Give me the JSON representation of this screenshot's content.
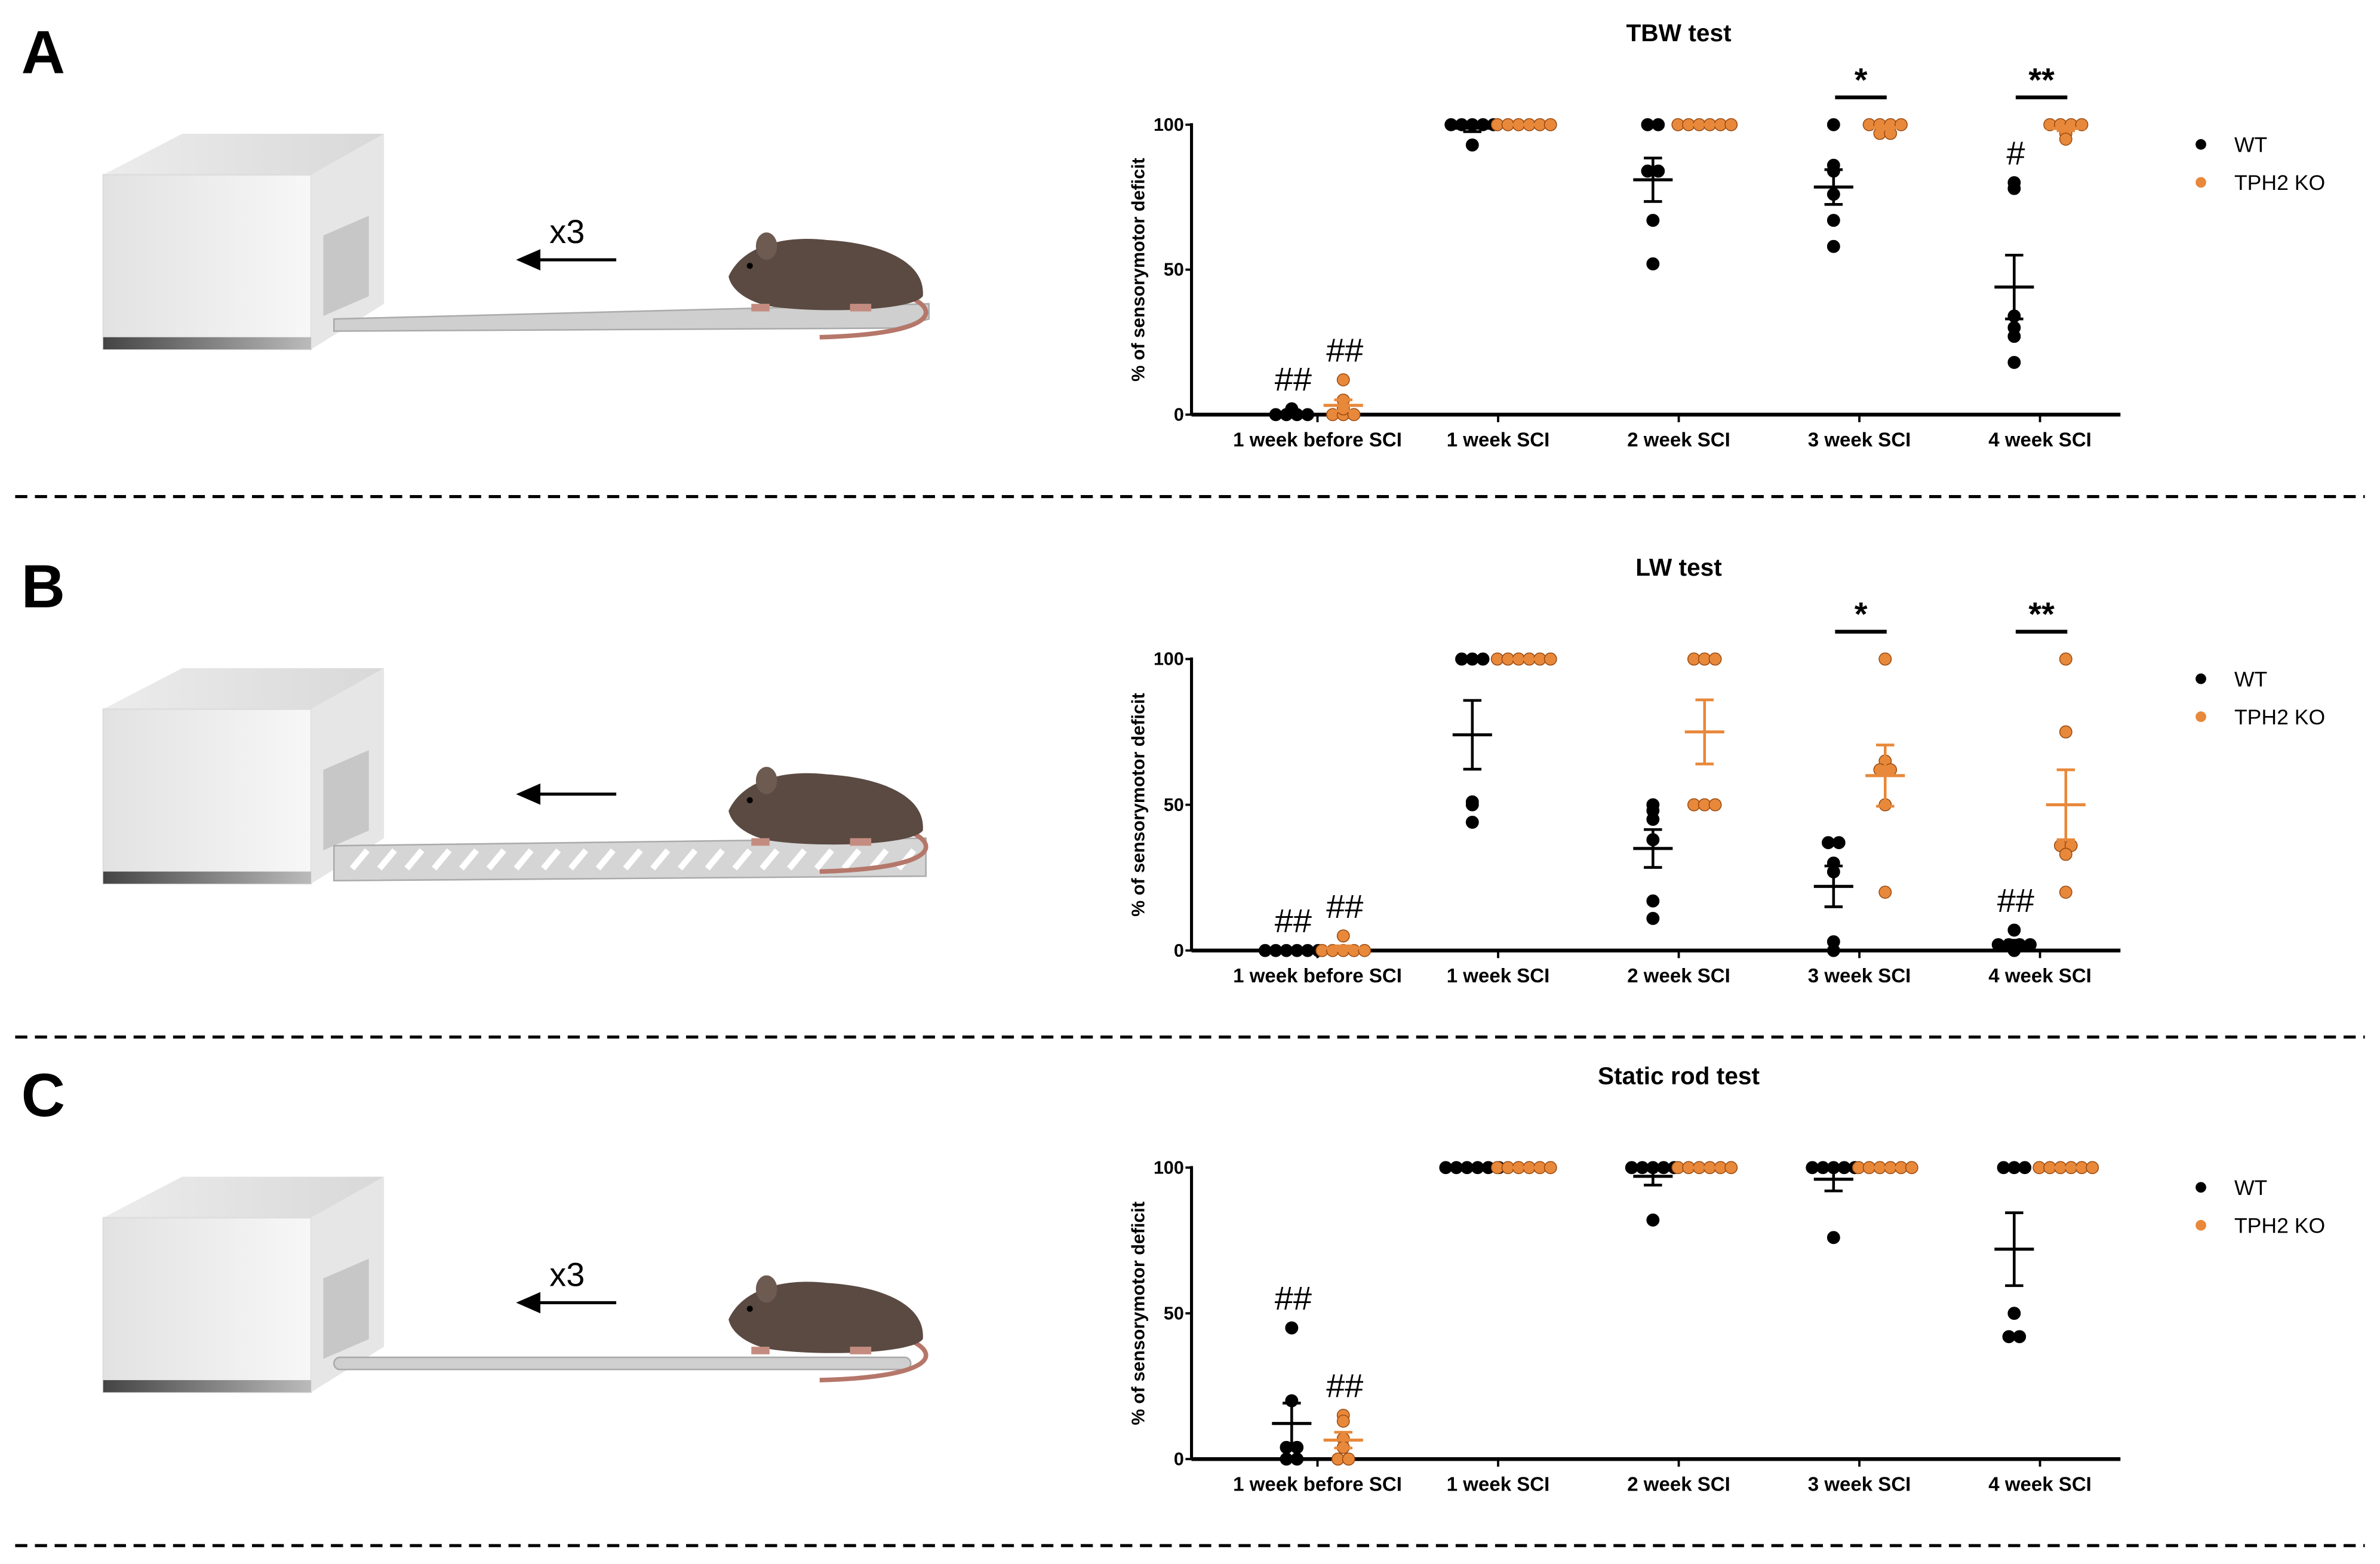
{
  "panels": [
    {
      "letter": "A",
      "arrow_label": "x3",
      "beam": "tapered"
    },
    {
      "letter": "B",
      "arrow_label": "",
      "beam": "ladder"
    },
    {
      "letter": "C",
      "arrow_label": "x3",
      "beam": "rod"
    }
  ],
  "colors": {
    "wt": "#000000",
    "ko": "#e8883a",
    "ko_stroke": "#9a4a10"
  },
  "chart_data": [
    {
      "type": "scatter",
      "title": "TBW test",
      "ylabel": "% of sensorymotor deficit",
      "ylim": [
        0,
        100
      ],
      "yticks": [
        "0",
        "50",
        "100"
      ],
      "categories": [
        "1 week before SCI",
        "1 week SCI",
        "2 week SCI",
        "3 week SCI",
        "4 week SCI"
      ],
      "legend": {
        "position": "right",
        "entries": [
          "WT",
          "TPH2 KO"
        ]
      },
      "series": [
        {
          "name": "WT",
          "points": [
            [
              0,
              0,
              0,
              0,
              1,
              2
            ],
            [
              100,
              100,
              100,
              100,
              100,
              93
            ],
            [
              100,
              100,
              84,
              84,
              67,
              52
            ],
            [
              100,
              86,
              84,
              76,
              67,
              58
            ],
            [
              80,
              78,
              34,
              30,
              27,
              18
            ]
          ],
          "mean": [
            0.5,
            98.8,
            81,
            78.5,
            44
          ],
          "sem": [
            0.4,
            1.2,
            7.5,
            6,
            11
          ]
        },
        {
          "name": "TPH2 KO",
          "points": [
            [
              0,
              0,
              0,
              2,
              5,
              12
            ],
            [
              100,
              100,
              100,
              100,
              100,
              100
            ],
            [
              100,
              100,
              100,
              100,
              100,
              100
            ],
            [
              100,
              100,
              100,
              100,
              97,
              97
            ],
            [
              100,
              100,
              100,
              100,
              97,
              95
            ]
          ],
          "mean": [
            3.2,
            100,
            100,
            99,
            98.7
          ],
          "sem": [
            1.9,
            0,
            0,
            0.6,
            0.8
          ]
        }
      ],
      "annotations": [
        {
          "group": 0,
          "series": 0,
          "text": "##"
        },
        {
          "group": 0,
          "series": 1,
          "text": "##"
        },
        {
          "group": 4,
          "series": 0,
          "text": "#"
        }
      ],
      "significance": [
        {
          "group": 3,
          "text": "*"
        },
        {
          "group": 4,
          "text": "**"
        }
      ]
    },
    {
      "type": "scatter",
      "title": "LW test",
      "ylabel": "% of sensorymotor deficit",
      "ylim": [
        0,
        100
      ],
      "yticks": [
        "0",
        "50",
        "100"
      ],
      "categories": [
        "1 week before SCI",
        "1 week SCI",
        "2 week SCI",
        "3 week SCI",
        "4 week SCI"
      ],
      "legend": {
        "position": "right",
        "entries": [
          "WT",
          "TPH2 KO"
        ]
      },
      "series": [
        {
          "name": "WT",
          "points": [
            [
              0,
              0,
              0,
              0,
              0,
              0
            ],
            [
              100,
              100,
              100,
              51,
              50,
              44
            ],
            [
              48,
              50,
              45,
              38,
              17,
              11
            ],
            [
              37,
              37,
              30,
              27,
              3,
              0
            ],
            [
              7,
              2,
              2,
              2,
              2,
              0
            ]
          ],
          "mean": [
            0,
            74,
            35,
            22,
            2.5
          ],
          "sem": [
            0,
            11.8,
            6.5,
            7,
            1
          ]
        },
        {
          "name": "TPH2 KO",
          "points": [
            [
              0,
              0,
              0,
              0,
              0,
              5
            ],
            [
              100,
              100,
              100,
              100,
              100,
              100
            ],
            [
              100,
              100,
              100,
              50,
              50,
              50
            ],
            [
              100,
              65,
              62,
              62,
              50,
              20
            ],
            [
              100,
              75,
              36,
              36,
              33,
              20
            ]
          ],
          "mean": [
            0.8,
            100,
            75,
            60,
            50
          ],
          "sem": [
            0.8,
            0,
            11,
            10.5,
            12
          ]
        }
      ],
      "annotations": [
        {
          "group": 0,
          "series": 0,
          "text": "##"
        },
        {
          "group": 0,
          "series": 1,
          "text": "##"
        },
        {
          "group": 4,
          "series": 0,
          "text": "##"
        }
      ],
      "significance": [
        {
          "group": 3,
          "text": "*"
        },
        {
          "group": 4,
          "text": "**"
        }
      ]
    },
    {
      "type": "scatter",
      "title": "Static rod test",
      "ylabel": "% of sensorymotor deficit",
      "ylim": [
        0,
        100
      ],
      "yticks": [
        "0",
        "50",
        "100"
      ],
      "categories": [
        "1 week before SCI",
        "1 week SCI",
        "2 week SCI",
        "3 week SCI",
        "4 week SCI"
      ],
      "legend": {
        "position": "right",
        "entries": [
          "WT",
          "TPH2 KO"
        ]
      },
      "series": [
        {
          "name": "WT",
          "points": [
            [
              45,
              20,
              4,
              4,
              0,
              0
            ],
            [
              100,
              100,
              100,
              100,
              100,
              100
            ],
            [
              100,
              100,
              100,
              100,
              100,
              82
            ],
            [
              100,
              100,
              100,
              100,
              100,
              76
            ],
            [
              100,
              100,
              100,
              50,
              42,
              42
            ]
          ],
          "mean": [
            12.2,
            100,
            97,
            96,
            72
          ],
          "sem": [
            7,
            0,
            3,
            4,
            12.5
          ]
        },
        {
          "name": "TPH2 KO",
          "points": [
            [
              15,
              13,
              7,
              4,
              0,
              0
            ],
            [
              100,
              100,
              100,
              100,
              100,
              100
            ],
            [
              100,
              100,
              100,
              100,
              100,
              100
            ],
            [
              100,
              100,
              100,
              100,
              100,
              100
            ],
            [
              100,
              100,
              100,
              100,
              100,
              100
            ]
          ],
          "mean": [
            6.5,
            100,
            100,
            100,
            100
          ],
          "sem": [
            2.7,
            0,
            0,
            0,
            0
          ]
        }
      ],
      "annotations": [
        {
          "group": 0,
          "series": 0,
          "text": "##"
        },
        {
          "group": 0,
          "series": 1,
          "text": "##"
        }
      ],
      "significance": []
    }
  ]
}
